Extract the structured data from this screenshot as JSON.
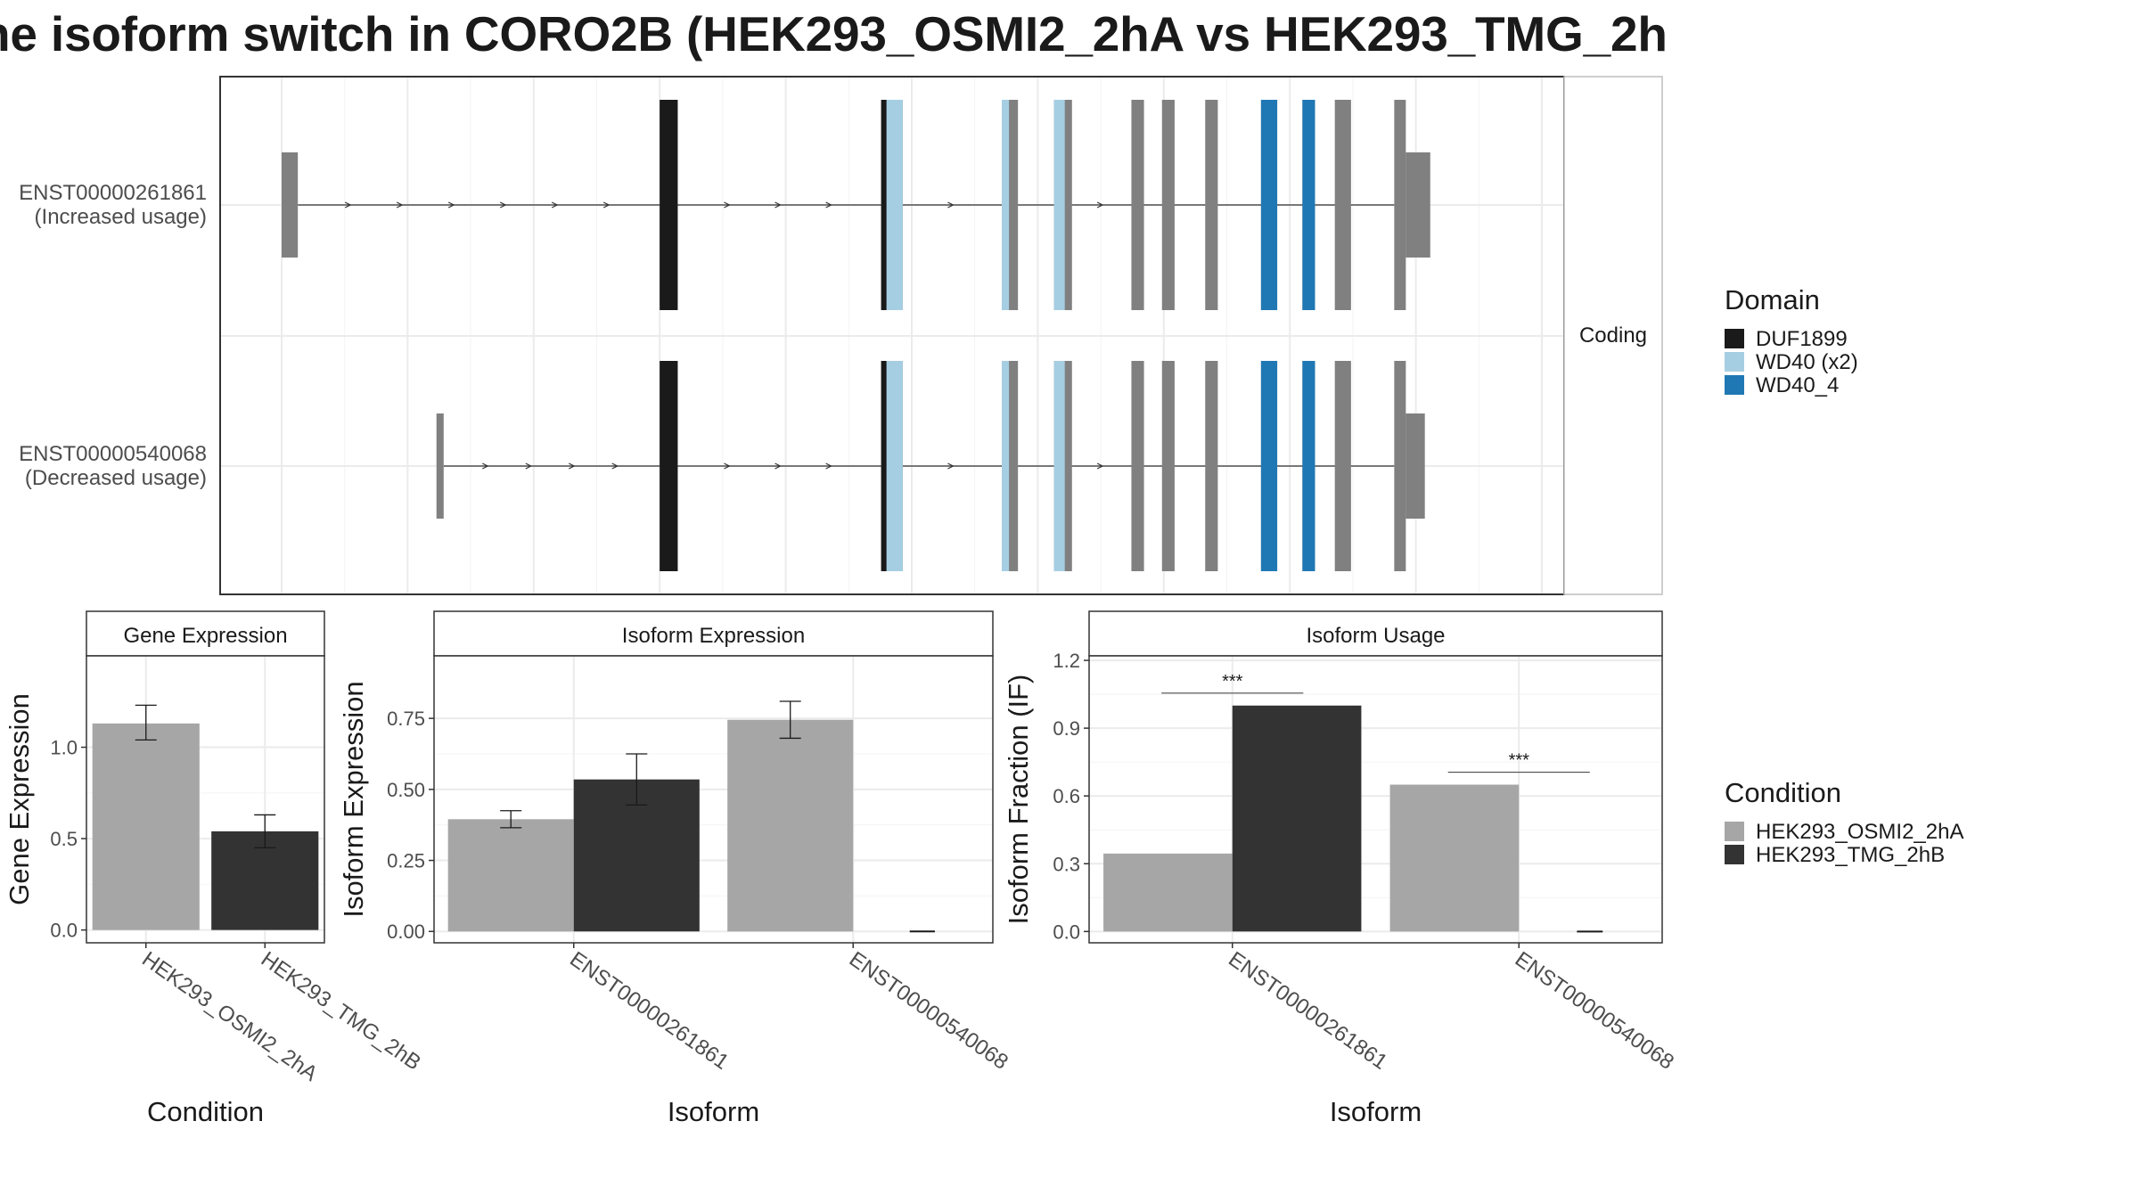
{
  "title": "ne isoform switch in CORO2B (HEK293_OSMI2_2hA vs HEK293_TMG_2h",
  "colors": {
    "domain": {
      "DUF1899": "#1a1a1a",
      "WD40 (x2)": "#a6cee3",
      "WD40_4": "#1f78b4"
    },
    "exon": "#808080",
    "condition": {
      "HEK293_OSMI2_2hA": "#a6a6a6",
      "HEK293_TMG_2hB": "#333333"
    }
  },
  "chart_data": [
    {
      "type": "gene-structure",
      "facet_label": "Coding",
      "transcripts": [
        {
          "id": "ENST00000261861",
          "label": "(Increased usage)",
          "exons": [
            [
              0.0,
              0.9
            ],
            [
              21.0,
              22.0
            ],
            [
              33.3,
              34.5
            ],
            [
              40.0,
              40.9
            ],
            [
              42.9,
              43.9
            ],
            [
              47.2,
              47.9
            ],
            [
              48.9,
              49.6
            ],
            [
              51.3,
              52.0
            ],
            [
              54.4,
              55.3
            ],
            [
              56.7,
              57.4
            ],
            [
              58.5,
              59.4
            ],
            [
              61.8,
              63.8
            ]
          ],
          "domains": [
            {
              "name": "DUF1899",
              "start": 21.0,
              "end": 22.0
            },
            {
              "name": "DUF1899",
              "start": 33.3,
              "end": 33.6
            },
            {
              "name": "WD40 (x2)",
              "start": 33.6,
              "end": 34.5
            },
            {
              "name": "WD40 (x2)",
              "start": 40.0,
              "end": 40.4
            },
            {
              "name": "WD40 (x2)",
              "start": 42.9,
              "end": 43.5
            },
            {
              "name": "WD40_4",
              "start": 54.4,
              "end": 55.3
            },
            {
              "name": "WD40_4",
              "start": 56.7,
              "end": 57.4
            }
          ]
        },
        {
          "id": "ENST00000540068",
          "label": "(Decreased usage)",
          "exons": [
            [
              8.6,
              9.0
            ],
            [
              21.0,
              22.0
            ],
            [
              33.3,
              34.5
            ],
            [
              40.0,
              40.9
            ],
            [
              42.9,
              43.9
            ],
            [
              47.2,
              47.9
            ],
            [
              48.9,
              49.6
            ],
            [
              51.3,
              52.0
            ],
            [
              54.4,
              55.3
            ],
            [
              56.7,
              57.4
            ],
            [
              58.5,
              59.4
            ],
            [
              61.8,
              63.5
            ]
          ],
          "domains": [
            {
              "name": "DUF1899",
              "start": 21.0,
              "end": 22.0
            },
            {
              "name": "DUF1899",
              "start": 33.3,
              "end": 33.6
            },
            {
              "name": "WD40 (x2)",
              "start": 33.6,
              "end": 34.5
            },
            {
              "name": "WD40 (x2)",
              "start": 40.0,
              "end": 40.4
            },
            {
              "name": "WD40 (x2)",
              "start": 42.9,
              "end": 43.5
            },
            {
              "name": "WD40_4",
              "start": 54.4,
              "end": 55.3
            },
            {
              "name": "WD40_4",
              "start": 56.7,
              "end": 57.4
            }
          ]
        }
      ],
      "legend": {
        "title": "Domain",
        "entries": [
          "DUF1899",
          "WD40 (x2)",
          "WD40_4"
        ]
      }
    },
    {
      "type": "bar",
      "title": "Gene Expression",
      "xlabel": "Condition",
      "ylabel": "Gene Expression",
      "categories": [
        "HEK293_OSMI2_2hA",
        "HEK293_TMG_2hB"
      ],
      "values": [
        1.13,
        0.54
      ],
      "error": [
        [
          1.04,
          1.23
        ],
        [
          0.45,
          0.63
        ]
      ],
      "yticks": [
        "0.0",
        "0.5",
        "1.0"
      ],
      "ylim": [
        -0.07,
        1.5
      ]
    },
    {
      "type": "bar",
      "title": "Isoform Expression",
      "xlabel": "Isoform",
      "ylabel": "Isoform Expression",
      "categories": [
        "ENST00000261861",
        "ENST00000540068"
      ],
      "series": [
        {
          "name": "HEK293_OSMI2_2hA",
          "values": [
            0.395,
            0.745
          ],
          "error": [
            [
              0.365,
              0.425
            ],
            [
              0.68,
              0.81
            ]
          ]
        },
        {
          "name": "HEK293_TMG_2hB",
          "values": [
            0.535,
            0.0
          ],
          "error": [
            [
              0.445,
              0.625
            ],
            [
              0.0,
              0.0
            ]
          ]
        }
      ],
      "yticks": [
        "0.00",
        "0.25",
        "0.50",
        "0.75"
      ],
      "ylim": [
        -0.04,
        0.97
      ]
    },
    {
      "type": "bar",
      "title": "Isoform Usage",
      "xlabel": "Isoform",
      "ylabel": "Isoform Fraction (IF)",
      "categories": [
        "ENST00000261861",
        "ENST00000540068"
      ],
      "series": [
        {
          "name": "HEK293_OSMI2_2hA",
          "values": [
            0.345,
            0.65
          ]
        },
        {
          "name": "HEK293_TMG_2hB",
          "values": [
            1.0,
            0.0
          ]
        }
      ],
      "significance": [
        "***",
        "***"
      ],
      "yticks": [
        "0.0",
        "0.3",
        "0.6",
        "0.9",
        "1.2"
      ],
      "ylim": [
        -0.05,
        1.22
      ]
    }
  ],
  "condition_legend": {
    "title": "Condition",
    "entries": [
      "HEK293_OSMI2_2hA",
      "HEK293_TMG_2hB"
    ]
  }
}
